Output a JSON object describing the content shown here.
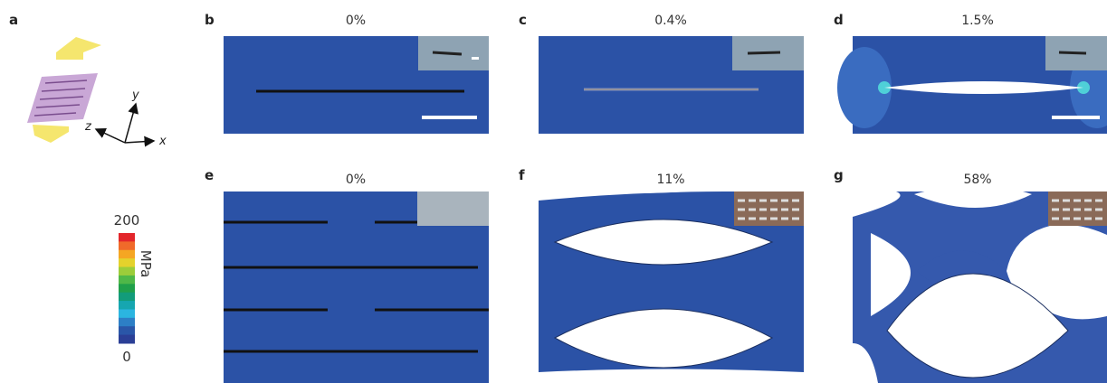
{
  "panel_a": {
    "label": "a",
    "axes": [
      "x",
      "y",
      "z"
    ]
  },
  "colorbar": {
    "max": "200",
    "min": "0",
    "unit": "MPa"
  },
  "panels": [
    {
      "label": "b",
      "strain": "0%"
    },
    {
      "label": "c",
      "strain": "0.4%"
    },
    {
      "label": "d",
      "strain": "1.5%"
    },
    {
      "label": "e",
      "strain": "0%"
    },
    {
      "label": "f",
      "strain": "11%"
    },
    {
      "label": "g",
      "strain": "58%"
    }
  ]
}
